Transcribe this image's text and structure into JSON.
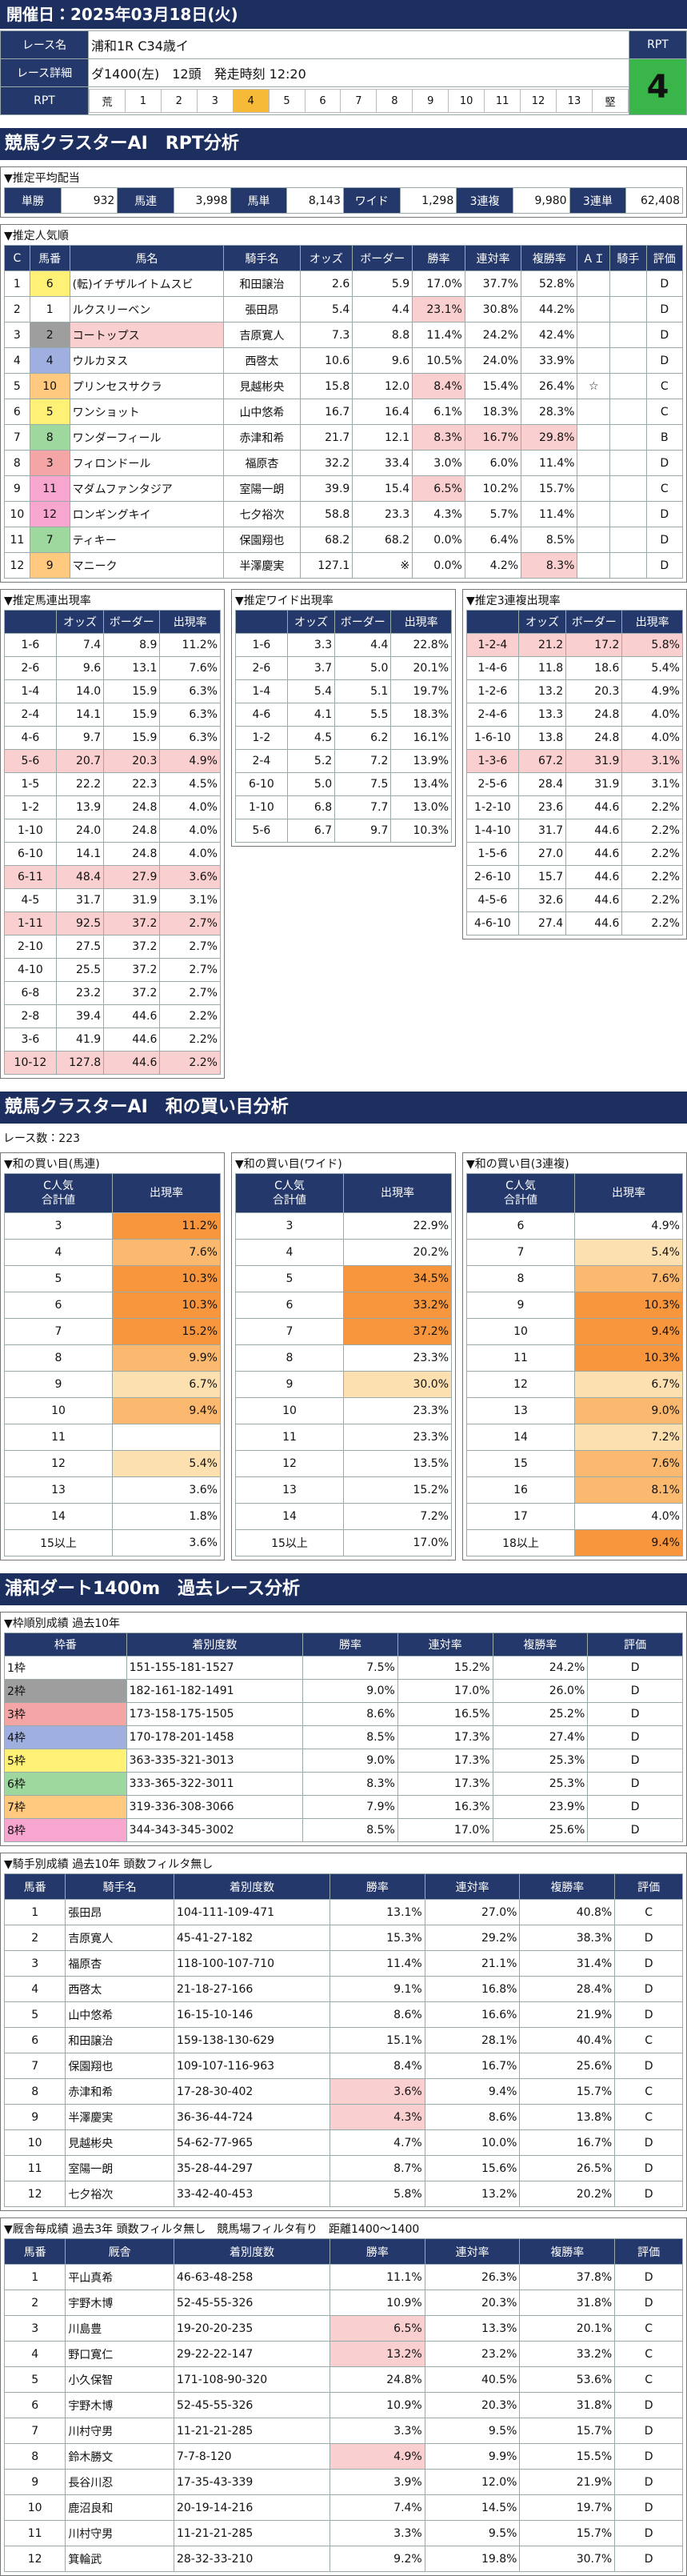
{
  "header": {
    "date": "開催日：2025年03月18日(火)",
    "labels": [
      "レース名",
      "レース詳細",
      "RPT"
    ],
    "race_name": "浦和1R C34歳イ",
    "race_detail": "ダ1400(左)　12頭　発走時刻 12:20",
    "rpt_label": "RPT",
    "rpt_value": "4",
    "rpt_scale": [
      "荒",
      "1",
      "2",
      "3",
      "4",
      "5",
      "6",
      "7",
      "8",
      "9",
      "10",
      "11",
      "12",
      "13",
      "堅"
    ]
  },
  "rpt_section": {
    "title": "競馬クラスターAI　RPT分析",
    "payout": {
      "title": "▼推定平均配当",
      "items": [
        [
          "単勝",
          "932"
        ],
        [
          "馬連",
          "3,998"
        ],
        [
          "馬単",
          "8,143"
        ],
        [
          "ワイド",
          "1,298"
        ],
        [
          "3連複",
          "9,980"
        ],
        [
          "3連単",
          "62,408"
        ]
      ]
    },
    "popularity": {
      "title": "▼推定人気順",
      "columns": [
        "C",
        "馬番",
        "馬名",
        "騎手名",
        "オッズ",
        "ボーダー",
        "勝率",
        "連対率",
        "複勝率",
        "ＡＩ",
        "騎手",
        "評価"
      ],
      "rows": [
        [
          "1",
          "6",
          "(転)イチザルイトムスビ",
          "和田譲治",
          "2.6",
          "5.9",
          "17.0%",
          "37.7%",
          "52.8%",
          null,
          null,
          "D"
        ],
        [
          "2",
          "1",
          "ルクスリーベン",
          "張田昂",
          "5.4",
          "4.4",
          "23.1%",
          "30.8%",
          "44.2%",
          null,
          null,
          "D"
        ],
        [
          "3",
          "2",
          "コートップス",
          "吉原寛人",
          "7.3",
          "8.8",
          "11.4%",
          "24.2%",
          "42.4%",
          null,
          null,
          "D"
        ],
        [
          "4",
          "4",
          "ウルカヌス",
          "西啓太",
          "10.6",
          "9.6",
          "10.5%",
          "24.0%",
          "33.9%",
          null,
          null,
          "D"
        ],
        [
          "5",
          "10",
          "プリンセスサクラ",
          "見越彬央",
          "15.8",
          "12.0",
          "8.4%",
          "15.4%",
          "26.4%",
          "☆",
          null,
          "C"
        ],
        [
          "6",
          "5",
          "ワンショット",
          "山中悠希",
          "16.7",
          "16.4",
          "6.1%",
          "18.3%",
          "28.3%",
          null,
          null,
          "C"
        ],
        [
          "7",
          "8",
          "ワンダーフィール",
          "赤津和希",
          "21.7",
          "12.1",
          "8.3%",
          "16.7%",
          "29.8%",
          null,
          null,
          "B"
        ],
        [
          "8",
          "3",
          "フィロンドール",
          "福原杏",
          "32.2",
          "33.4",
          "3.0%",
          "6.0%",
          "11.4%",
          null,
          null,
          "D"
        ],
        [
          "9",
          "11",
          "マダムファンタジア",
          "室陽一朗",
          "39.9",
          "15.4",
          "6.5%",
          "10.2%",
          "15.7%",
          null,
          null,
          "C"
        ],
        [
          "10",
          "12",
          "ロンギングキイ",
          "七夕裕次",
          "58.8",
          "23.3",
          "4.3%",
          "5.7%",
          "11.4%",
          null,
          null,
          "D"
        ],
        [
          "11",
          "7",
          "ティキー",
          "保園翔也",
          "68.2",
          "68.2",
          "0.0%",
          "6.4%",
          "8.5%",
          null,
          null,
          "D"
        ],
        [
          "12",
          "9",
          "マニーク",
          "半澤慶実",
          "127.1",
          "※",
          "0.0%",
          "4.2%",
          "8.3%",
          null,
          null,
          "D"
        ]
      ]
    },
    "pairs": [
      {
        "title": "▼推定馬連出現率",
        "columns": [
          "オッズ",
          "ボーダー",
          "出現率"
        ],
        "rows": [
          [
            "1-6",
            "7.4",
            "8.9",
            "11.2%"
          ],
          [
            "2-6",
            "9.6",
            "13.1",
            "7.6%"
          ],
          [
            "1-4",
            "14.0",
            "15.9",
            "6.3%"
          ],
          [
            "2-4",
            "14.1",
            "15.9",
            "6.3%"
          ],
          [
            "4-6",
            "9.7",
            "15.9",
            "6.3%"
          ],
          [
            "5-6",
            "20.7",
            "20.3",
            "4.9%"
          ],
          [
            "1-5",
            "22.2",
            "22.3",
            "4.5%"
          ],
          [
            "1-2",
            "13.9",
            "24.8",
            "4.0%"
          ],
          [
            "1-10",
            "24.0",
            "24.8",
            "4.0%"
          ],
          [
            "6-10",
            "14.1",
            "24.8",
            "4.0%"
          ],
          [
            "6-11",
            "48.4",
            "27.9",
            "3.6%"
          ],
          [
            "4-5",
            "31.7",
            "31.9",
            "3.1%"
          ],
          [
            "1-11",
            "92.5",
            "37.2",
            "2.7%"
          ],
          [
            "2-10",
            "27.5",
            "37.2",
            "2.7%"
          ],
          [
            "4-10",
            "25.5",
            "37.2",
            "2.7%"
          ],
          [
            "6-8",
            "23.2",
            "37.2",
            "2.7%"
          ],
          [
            "2-8",
            "39.4",
            "44.6",
            "2.2%"
          ],
          [
            "3-6",
            "41.9",
            "44.6",
            "2.2%"
          ],
          [
            "10-12",
            "127.8",
            "44.6",
            "2.2%"
          ]
        ]
      },
      {
        "title": "▼推定ワイド出現率",
        "columns": [
          "オッズ",
          "ボーダー",
          "出現率"
        ],
        "rows": [
          [
            "1-6",
            "3.3",
            "4.4",
            "22.8%"
          ],
          [
            "2-6",
            "3.7",
            "5.0",
            "20.1%"
          ],
          [
            "1-4",
            "5.4",
            "5.1",
            "19.7%"
          ],
          [
            "4-6",
            "4.1",
            "5.5",
            "18.3%"
          ],
          [
            "1-2",
            "4.5",
            "6.2",
            "16.1%"
          ],
          [
            "2-4",
            "5.2",
            "7.2",
            "13.9%"
          ],
          [
            "6-10",
            "5.0",
            "7.5",
            "13.4%"
          ],
          [
            "1-10",
            "6.8",
            "7.7",
            "13.0%"
          ],
          [
            "5-6",
            "6.7",
            "9.7",
            "10.3%"
          ]
        ]
      },
      {
        "title": "▼推定3連複出現率",
        "columns": [
          "オッズ",
          "ボーダー",
          "出現率"
        ],
        "rows": [
          [
            "1-2-4",
            "21.2",
            "17.2",
            "5.8%"
          ],
          [
            "1-4-6",
            "11.8",
            "18.6",
            "5.4%"
          ],
          [
            "1-2-6",
            "13.2",
            "20.3",
            "4.9%"
          ],
          [
            "2-4-6",
            "13.3",
            "24.8",
            "4.0%"
          ],
          [
            "1-6-10",
            "13.8",
            "24.8",
            "4.0%"
          ],
          [
            "1-3-6",
            "67.2",
            "31.9",
            "3.1%"
          ],
          [
            "2-5-6",
            "28.4",
            "31.9",
            "3.1%"
          ],
          [
            "1-2-10",
            "23.6",
            "44.6",
            "2.2%"
          ],
          [
            "1-4-10",
            "31.7",
            "44.6",
            "2.2%"
          ],
          [
            "1-5-6",
            "27.0",
            "44.6",
            "2.2%"
          ],
          [
            "2-6-10",
            "15.7",
            "44.6",
            "2.2%"
          ],
          [
            "4-5-6",
            "32.6",
            "44.6",
            "2.2%"
          ],
          [
            "4-6-10",
            "27.4",
            "44.6",
            "2.2%"
          ]
        ]
      }
    ]
  },
  "combo_section": {
    "title": "競馬クラスターAI　和の買い目分析",
    "race_count": "レース数：223",
    "tables": [
      {
        "title": "▼和の買い目(馬連)",
        "columns": [
          "C人気\n合計値",
          "出現率"
        ],
        "rows": [
          [
            "3",
            "11.2%"
          ],
          [
            "4",
            "7.6%"
          ],
          [
            "5",
            "10.3%"
          ],
          [
            "6",
            "10.3%"
          ],
          [
            "7",
            "15.2%"
          ],
          [
            "8",
            "9.9%"
          ],
          [
            "9",
            "6.7%"
          ],
          [
            "10",
            "9.4%"
          ],
          [
            "11",
            null
          ],
          [
            "12",
            "5.4%"
          ],
          [
            "13",
            "3.6%"
          ],
          [
            "14",
            "1.8%"
          ],
          [
            "15以上",
            "3.6%"
          ]
        ]
      },
      {
        "title": "▼和の買い目(ワイド)",
        "columns": [
          "C人気\n合計値",
          "出現率"
        ],
        "rows": [
          [
            "3",
            "22.9%"
          ],
          [
            "4",
            "20.2%"
          ],
          [
            "5",
            "34.5%"
          ],
          [
            "6",
            "33.2%"
          ],
          [
            "7",
            "37.2%"
          ],
          [
            "8",
            "23.3%"
          ],
          [
            "9",
            "30.0%"
          ],
          [
            "10",
            "23.3%"
          ],
          [
            "11",
            "23.3%"
          ],
          [
            "12",
            "13.5%"
          ],
          [
            "13",
            "15.2%"
          ],
          [
            "14",
            "7.2%"
          ],
          [
            "15以上",
            "17.0%"
          ]
        ]
      },
      {
        "title": "▼和の買い目(3連複)",
        "columns": [
          "C人気\n合計値",
          "出現率"
        ],
        "rows": [
          [
            "6",
            "4.9%"
          ],
          [
            "7",
            "5.4%"
          ],
          [
            "8",
            "7.6%"
          ],
          [
            "9",
            "10.3%"
          ],
          [
            "10",
            "9.4%"
          ],
          [
            "11",
            "10.3%"
          ],
          [
            "12",
            "6.7%"
          ],
          [
            "13",
            "9.0%"
          ],
          [
            "14",
            "7.2%"
          ],
          [
            "15",
            "7.6%"
          ],
          [
            "16",
            "8.1%"
          ],
          [
            "17",
            "4.0%"
          ],
          [
            "18以上",
            "9.4%"
          ]
        ]
      }
    ]
  },
  "course_section": {
    "title": "浦和ダート1400m　過去レース分析",
    "tables": [
      {
        "title": "▼枠順別成績 過去10年",
        "columns": [
          "枠番",
          "着別度数",
          "勝率",
          "連対率",
          "複勝率",
          "評価"
        ],
        "rows": [
          [
            "1枠",
            "151-155-181-1527",
            "7.5%",
            "15.2%",
            "24.2%",
            "D"
          ],
          [
            "2枠",
            "182-161-182-1491",
            "9.0%",
            "17.0%",
            "26.0%",
            "D"
          ],
          [
            "3枠",
            "173-158-175-1505",
            "8.6%",
            "16.5%",
            "25.2%",
            "D"
          ],
          [
            "4枠",
            "170-178-201-1458",
            "8.5%",
            "17.3%",
            "27.4%",
            "D"
          ],
          [
            "5枠",
            "363-335-321-3013",
            "9.0%",
            "17.3%",
            "25.3%",
            "D"
          ],
          [
            "6枠",
            "333-365-322-3011",
            "8.3%",
            "17.3%",
            "25.3%",
            "D"
          ],
          [
            "7枠",
            "319-336-308-3066",
            "7.9%",
            "16.3%",
            "23.9%",
            "D"
          ],
          [
            "8枠",
            "344-343-345-3002",
            "8.5%",
            "17.0%",
            "25.6%",
            "D"
          ]
        ]
      },
      {
        "title": "▼騎手別成績 過去10年 頭数フィルタ無し",
        "columns": [
          "馬番",
          "騎手名",
          "着別度数",
          "勝率",
          "連対率",
          "複勝率",
          "評価"
        ],
        "rows": [
          [
            "1",
            "張田昂",
            "104-111-109-471",
            "13.1%",
            "27.0%",
            "40.8%",
            "C"
          ],
          [
            "2",
            "吉原寛人",
            "45-41-27-182",
            "15.3%",
            "29.2%",
            "38.3%",
            "D"
          ],
          [
            "3",
            "福原杏",
            "118-100-107-710",
            "11.4%",
            "21.1%",
            "31.4%",
            "D"
          ],
          [
            "4",
            "西啓太",
            "21-18-27-166",
            "9.1%",
            "16.8%",
            "28.4%",
            "D"
          ],
          [
            "5",
            "山中悠希",
            "16-15-10-146",
            "8.6%",
            "16.6%",
            "21.9%",
            "D"
          ],
          [
            "6",
            "和田譲治",
            "159-138-130-629",
            "15.1%",
            "28.1%",
            "40.4%",
            "C"
          ],
          [
            "7",
            "保園翔也",
            "109-107-116-963",
            "8.4%",
            "16.7%",
            "25.6%",
            "D"
          ],
          [
            "8",
            "赤津和希",
            "17-28-30-402",
            "3.6%",
            "9.4%",
            "15.7%",
            "C"
          ],
          [
            "9",
            "半澤慶実",
            "36-36-44-724",
            "4.3%",
            "8.6%",
            "13.8%",
            "C"
          ],
          [
            "10",
            "見越彬央",
            "54-62-77-965",
            "4.7%",
            "10.0%",
            "16.7%",
            "D"
          ],
          [
            "11",
            "室陽一朗",
            "35-28-44-297",
            "8.7%",
            "15.6%",
            "26.5%",
            "D"
          ],
          [
            "12",
            "七夕裕次",
            "33-42-40-453",
            "5.8%",
            "13.2%",
            "20.2%",
            "D"
          ]
        ]
      },
      {
        "title": "▼厩舎毎成績 過去3年 頭数フィルタ無し　競馬場フィルタ有り　距離1400〜1400",
        "columns": [
          "馬番",
          "厩舎",
          "着別度数",
          "勝率",
          "連対率",
          "複勝率",
          "評価"
        ],
        "rows": [
          [
            "1",
            "平山真希",
            "46-63-48-258",
            "11.1%",
            "26.3%",
            "37.8%",
            "D"
          ],
          [
            "2",
            "宇野木博",
            "52-45-55-326",
            "10.9%",
            "20.3%",
            "31.8%",
            "D"
          ],
          [
            "3",
            "川島豊",
            "19-20-20-235",
            "6.5%",
            "13.3%",
            "20.1%",
            "C"
          ],
          [
            "4",
            "野口寛仁",
            "29-22-22-147",
            "13.2%",
            "23.2%",
            "33.2%",
            "C"
          ],
          [
            "5",
            "小久保智",
            "171-108-90-320",
            "24.8%",
            "40.5%",
            "53.6%",
            "C"
          ],
          [
            "6",
            "宇野木博",
            "52-45-55-326",
            "10.9%",
            "20.3%",
            "31.8%",
            "D"
          ],
          [
            "7",
            "川村守男",
            "11-21-21-285",
            "3.3%",
            "9.5%",
            "15.7%",
            "D"
          ],
          [
            "8",
            "鈴木勝文",
            "7-7-8-120",
            "4.9%",
            "9.9%",
            "15.5%",
            "D"
          ],
          [
            "9",
            "長谷川忍",
            "17-35-43-339",
            "3.9%",
            "12.0%",
            "21.9%",
            "D"
          ],
          [
            "10",
            "鹿沼良和",
            "20-19-14-216",
            "7.4%",
            "14.5%",
            "19.7%",
            "D"
          ],
          [
            "11",
            "川村守男",
            "11-21-21-285",
            "3.3%",
            "9.5%",
            "15.7%",
            "D"
          ],
          [
            "12",
            "箕輪武",
            "28-32-33-210",
            "9.2%",
            "19.8%",
            "30.7%",
            "D"
          ]
        ]
      }
    ]
  }
}
